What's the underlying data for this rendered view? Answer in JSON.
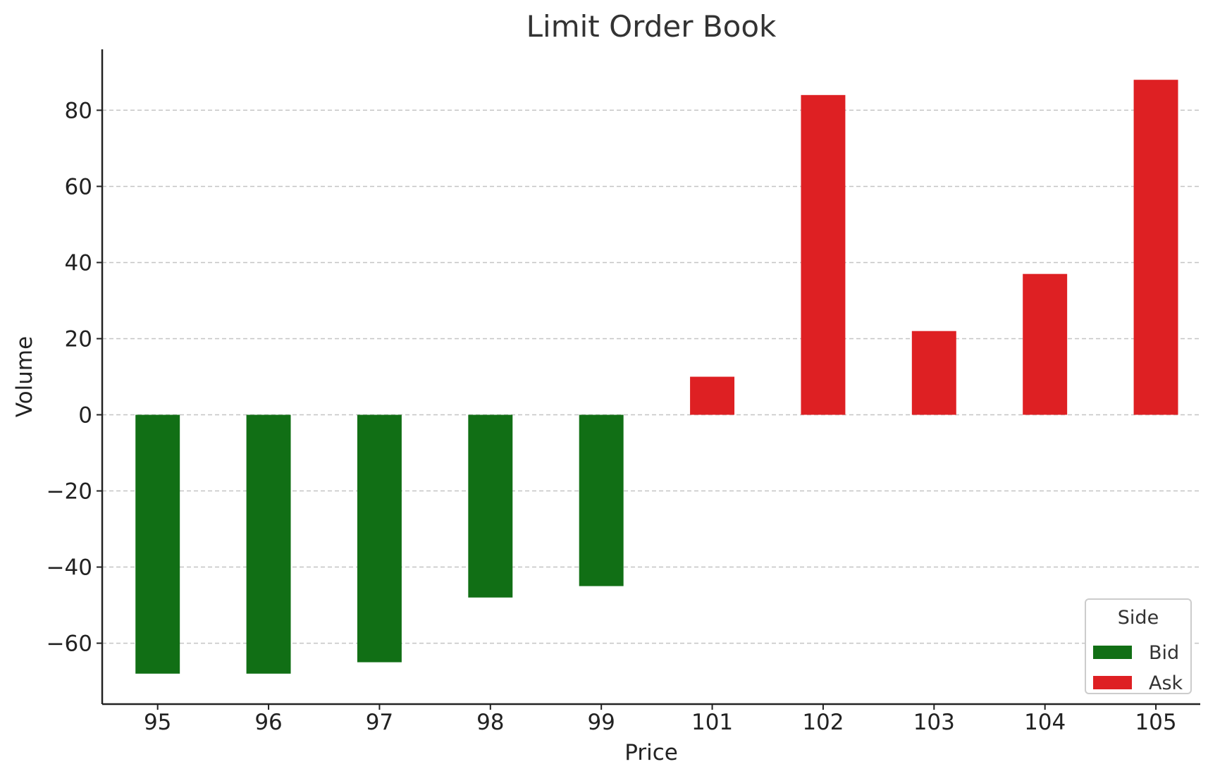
{
  "chart_data": {
    "type": "bar",
    "title": "Limit Order Book",
    "xlabel": "Price",
    "ylabel": "Volume",
    "categories": [
      "95",
      "96",
      "97",
      "98",
      "99",
      "101",
      "102",
      "103",
      "104",
      "105"
    ],
    "series": [
      {
        "name": "Bid",
        "color": "#116f15",
        "values": [
          -68,
          -68,
          -65,
          -48,
          -45,
          null,
          null,
          null,
          null,
          null
        ]
      },
      {
        "name": "Ask",
        "color": "#de2023",
        "values": [
          null,
          null,
          null,
          null,
          null,
          10,
          84,
          22,
          37,
          88
        ]
      }
    ],
    "ylim": [
      -76,
      96
    ],
    "yticks": [
      -60,
      -40,
      -20,
      0,
      20,
      40,
      60,
      80
    ],
    "ytick_labels": [
      "−60",
      "−40",
      "−20",
      "0",
      "20",
      "40",
      "60",
      "80"
    ],
    "grid": "horizontal dashed",
    "legend": {
      "title": "Side",
      "placement": "bottom-right",
      "entries": [
        "Bid",
        "Ask"
      ]
    }
  }
}
